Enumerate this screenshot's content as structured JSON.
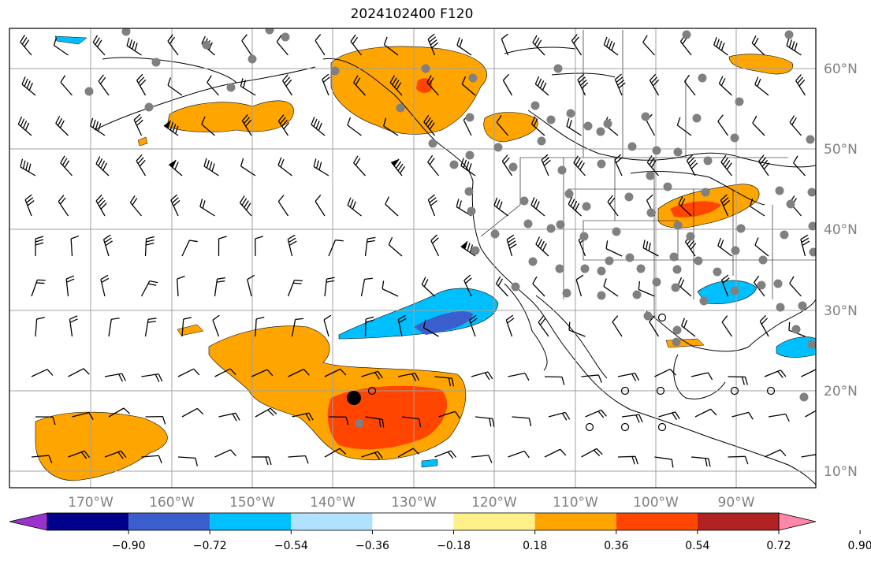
{
  "title": "2024102400 F120",
  "map": {
    "lon_labels": [
      "170°W",
      "160°W",
      "150°W",
      "140°W",
      "130°W",
      "120°W",
      "110°W",
      "100°W",
      "90°W"
    ],
    "lat_labels": [
      "60°N",
      "50°N",
      "40°N",
      "30°N",
      "20°N",
      "10°N"
    ],
    "lon_range": [
      -180,
      -80
    ],
    "lat_range": [
      8,
      65
    ]
  },
  "colorbar": {
    "tick_labels": [
      "−0.90",
      "−0.72",
      "−0.54",
      "−0.36",
      "−0.18",
      "0.18",
      "0.36",
      "0.54",
      "0.72",
      "0.90"
    ],
    "colors": [
      "#9932cc",
      "#00008b",
      "#3a5fcd",
      "#00bfff",
      "#b0e2ff",
      "#ffffff",
      "#fff08a",
      "#ffa500",
      "#ff4500",
      "#b22222",
      "#ff88aa"
    ]
  },
  "colors": {
    "land_line": "#000000",
    "grid": "#a0a0a0",
    "dots": "#808080",
    "label": "#808080"
  }
}
